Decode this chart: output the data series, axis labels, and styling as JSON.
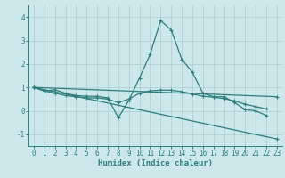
{
  "xlabel": "Humidex (Indice chaleur)",
  "xlim": [
    -0.5,
    23.5
  ],
  "ylim": [
    -1.5,
    4.5
  ],
  "yticks": [
    -1,
    0,
    1,
    2,
    3,
    4
  ],
  "xticks": [
    0,
    1,
    2,
    3,
    4,
    5,
    6,
    7,
    8,
    9,
    10,
    11,
    12,
    13,
    14,
    15,
    16,
    17,
    18,
    19,
    20,
    21,
    22,
    23
  ],
  "bg_color": "#cce8ea",
  "grid_color": "#aacccc",
  "line_color": "#2e7d7d",
  "lines": [
    {
      "x": [
        0,
        1,
        2,
        3,
        4,
        5,
        6,
        7,
        8,
        9,
        10,
        11,
        12,
        13,
        14,
        15,
        16,
        17,
        18,
        19,
        20,
        21,
        22
      ],
      "y": [
        1.0,
        0.85,
        0.9,
        0.75,
        0.65,
        0.62,
        0.62,
        0.55,
        -0.3,
        0.45,
        1.4,
        2.4,
        3.85,
        3.45,
        2.2,
        1.65,
        0.75,
        0.6,
        0.6,
        0.35,
        0.05,
        0.0,
        -0.2
      ]
    },
    {
      "x": [
        0,
        1,
        2,
        3,
        4,
        5,
        6,
        7,
        8,
        9,
        10,
        11,
        12,
        13,
        14,
        15,
        16,
        17,
        18,
        19,
        20,
        21,
        22
      ],
      "y": [
        1.0,
        0.85,
        0.75,
        0.65,
        0.6,
        0.55,
        0.55,
        0.5,
        0.35,
        0.5,
        0.75,
        0.85,
        0.88,
        0.88,
        0.82,
        0.72,
        0.62,
        0.58,
        0.52,
        0.42,
        0.28,
        0.18,
        0.08
      ]
    },
    {
      "x": [
        0,
        23
      ],
      "y": [
        1.0,
        0.6
      ]
    },
    {
      "x": [
        0,
        23
      ],
      "y": [
        1.0,
        -1.2
      ]
    }
  ]
}
